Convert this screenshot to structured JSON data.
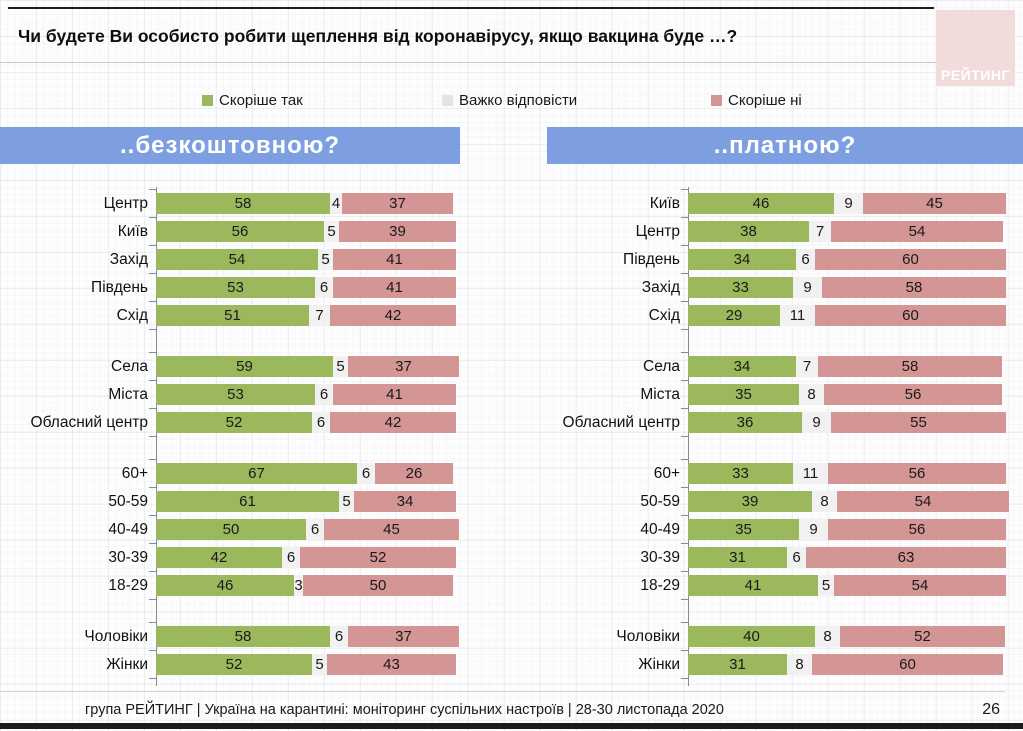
{
  "title": "Чи будете Ви особисто робити щеплення від коронавірусу, якщо вакцина буде …?",
  "logo": {
    "text": "РЕЙТИНГ",
    "bg": "#f2dcdb"
  },
  "legend": [
    {
      "label": "Скоріше так",
      "color": "#9bb95c"
    },
    {
      "label": "Важко відповісти",
      "color": "#e4e4e4"
    },
    {
      "label": "Скоріше ні",
      "color": "#d49595"
    }
  ],
  "segment_colors": {
    "yes": "#9bb95c",
    "dk": "#f1f1f1",
    "no": "#d49595"
  },
  "chart_data": [
    {
      "type": "bar",
      "orientation": "horizontal",
      "stacked": true,
      "title": "..безкоштовною?",
      "header_color": "#7d9fe1",
      "series_names": [
        "Скоріше так",
        "Важко відповісти",
        "Скоріше ні"
      ],
      "xlim": [
        0,
        100
      ],
      "grid": false,
      "groups": [
        {
          "rows": [
            {
              "label": "Центр",
              "values": [
                58,
                4,
                37
              ]
            },
            {
              "label": "Київ",
              "values": [
                56,
                5,
                39
              ]
            },
            {
              "label": "Захід",
              "values": [
                54,
                5,
                41
              ]
            },
            {
              "label": "Південь",
              "values": [
                53,
                6,
                41
              ]
            },
            {
              "label": "Схід",
              "values": [
                51,
                7,
                42
              ]
            }
          ]
        },
        {
          "rows": [
            {
              "label": "Села",
              "values": [
                59,
                5,
                37
              ]
            },
            {
              "label": "Міста",
              "values": [
                53,
                6,
                41
              ]
            },
            {
              "label": "Обласний центр",
              "values": [
                52,
                6,
                42
              ]
            }
          ]
        },
        {
          "rows": [
            {
              "label": "60+",
              "values": [
                67,
                6,
                26
              ]
            },
            {
              "label": "50-59",
              "values": [
                61,
                5,
                34
              ]
            },
            {
              "label": "40-49",
              "values": [
                50,
                6,
                45
              ]
            },
            {
              "label": "30-39",
              "values": [
                42,
                6,
                52
              ]
            },
            {
              "label": "18-29",
              "values": [
                46,
                3,
                50
              ]
            }
          ]
        },
        {
          "rows": [
            {
              "label": "Чоловіки",
              "values": [
                58,
                6,
                37
              ]
            },
            {
              "label": "Жінки",
              "values": [
                52,
                5,
                43
              ]
            }
          ]
        }
      ]
    },
    {
      "type": "bar",
      "orientation": "horizontal",
      "stacked": true,
      "title": "..платною?",
      "header_color": "#7d9fe1",
      "series_names": [
        "Скоріше так",
        "Важко відповісти",
        "Скоріше ні"
      ],
      "xlim": [
        0,
        100
      ],
      "grid": false,
      "groups": [
        {
          "rows": [
            {
              "label": "Київ",
              "values": [
                46,
                9,
                45
              ]
            },
            {
              "label": "Центр",
              "values": [
                38,
                7,
                54
              ]
            },
            {
              "label": "Південь",
              "values": [
                34,
                6,
                60
              ]
            },
            {
              "label": "Захід",
              "values": [
                33,
                9,
                58
              ]
            },
            {
              "label": "Схід",
              "values": [
                29,
                11,
                60
              ]
            }
          ]
        },
        {
          "rows": [
            {
              "label": "Села",
              "values": [
                34,
                7,
                58
              ]
            },
            {
              "label": "Міста",
              "values": [
                35,
                8,
                56
              ]
            },
            {
              "label": "Обласний центр",
              "values": [
                36,
                9,
                55
              ]
            }
          ]
        },
        {
          "rows": [
            {
              "label": "60+",
              "values": [
                33,
                11,
                56
              ]
            },
            {
              "label": "50-59",
              "values": [
                39,
                8,
                54
              ]
            },
            {
              "label": "40-49",
              "values": [
                35,
                9,
                56
              ]
            },
            {
              "label": "30-39",
              "values": [
                31,
                6,
                63
              ]
            },
            {
              "label": "18-29",
              "values": [
                41,
                5,
                54
              ]
            }
          ]
        },
        {
          "rows": [
            {
              "label": "Чоловіки",
              "values": [
                40,
                8,
                52
              ]
            },
            {
              "label": "Жінки",
              "values": [
                31,
                8,
                60
              ]
            }
          ]
        }
      ]
    }
  ],
  "footer": {
    "text": "група РЕЙТИНГ | Україна на карантині: моніторинг суспільних настроїв | 28-30 листопада 2020",
    "page": "26"
  }
}
